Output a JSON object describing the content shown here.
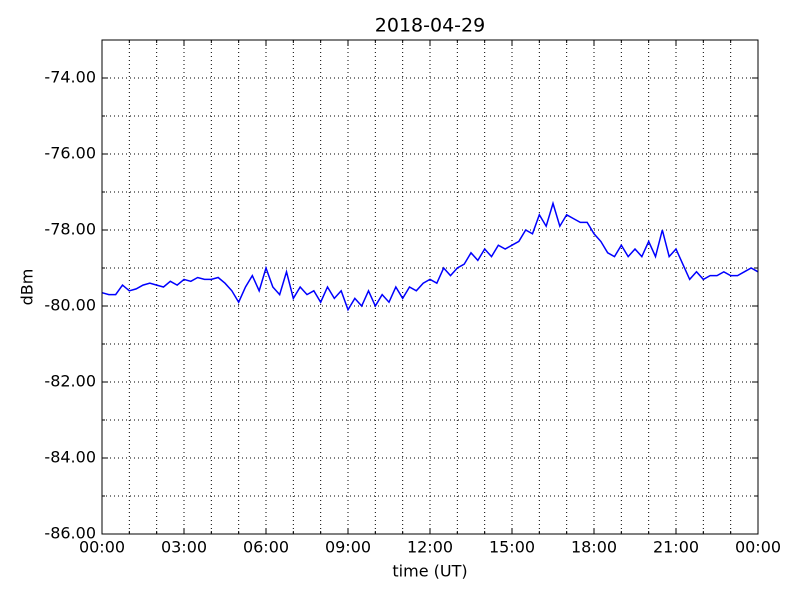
{
  "chart_data": {
    "type": "line",
    "title": "2018-04-29",
    "x_label": "time (UT)",
    "y_label": "dBm",
    "xlim": [
      0,
      24
    ],
    "ylim": [
      -86,
      -73
    ],
    "xticks": [
      {
        "value": 0,
        "label": "00:00"
      },
      {
        "value": 3,
        "label": "03:00"
      },
      {
        "value": 6,
        "label": "06:00"
      },
      {
        "value": 9,
        "label": "09:00"
      },
      {
        "value": 12,
        "label": "12:00"
      },
      {
        "value": 15,
        "label": "15:00"
      },
      {
        "value": 18,
        "label": "18:00"
      },
      {
        "value": 21,
        "label": "21:00"
      },
      {
        "value": 24,
        "label": "00:00"
      }
    ],
    "xminorticks": [
      1,
      2,
      4,
      5,
      7,
      8,
      10,
      11,
      13,
      14,
      16,
      17,
      19,
      20,
      22,
      23
    ],
    "yticks": [
      {
        "value": -86,
        "label": "-86.00"
      },
      {
        "value": -84,
        "label": "-84.00"
      },
      {
        "value": -82,
        "label": "-82.00"
      },
      {
        "value": -80,
        "label": "-80.00"
      },
      {
        "value": -78,
        "label": "-78.00"
      },
      {
        "value": -76,
        "label": "-76.00"
      },
      {
        "value": -74,
        "label": "-74.00"
      }
    ],
    "yminorticks": [
      -85,
      -83,
      -81,
      -79,
      -77,
      -75
    ],
    "grid": true,
    "series": [
      {
        "color": "#0000ff",
        "x": [
          0,
          0.25,
          0.5,
          0.75,
          1,
          1.25,
          1.5,
          1.75,
          2,
          2.25,
          2.5,
          2.75,
          3,
          3.25,
          3.5,
          3.75,
          4,
          4.25,
          4.5,
          4.75,
          5,
          5.25,
          5.5,
          5.75,
          6,
          6.25,
          6.5,
          6.75,
          7,
          7.25,
          7.5,
          7.75,
          8,
          8.25,
          8.5,
          8.75,
          9,
          9.25,
          9.5,
          9.75,
          10,
          10.25,
          10.5,
          10.75,
          11,
          11.25,
          11.5,
          11.75,
          12,
          12.25,
          12.5,
          12.75,
          13,
          13.25,
          13.5,
          13.75,
          14,
          14.25,
          14.5,
          14.75,
          15,
          15.25,
          15.5,
          15.75,
          16,
          16.25,
          16.5,
          16.75,
          17,
          17.25,
          17.5,
          17.75,
          18,
          18.25,
          18.5,
          18.75,
          19,
          19.25,
          19.5,
          19.75,
          20,
          20.25,
          20.5,
          20.75,
          21,
          21.25,
          21.5,
          21.75,
          22,
          22.25,
          22.5,
          22.75,
          23,
          23.25,
          23.5,
          23.75,
          24
        ],
        "values": [
          -79.65,
          -79.7,
          -79.7,
          -79.45,
          -79.6,
          -79.55,
          -79.45,
          -79.4,
          -79.45,
          -79.5,
          -79.35,
          -79.45,
          -79.3,
          -79.35,
          -79.25,
          -79.3,
          -79.3,
          -79.25,
          -79.4,
          -79.6,
          -79.9,
          -79.5,
          -79.2,
          -79.6,
          -79.0,
          -79.5,
          -79.7,
          -79.1,
          -79.8,
          -79.5,
          -79.7,
          -79.6,
          -79.9,
          -79.5,
          -79.8,
          -79.6,
          -80.1,
          -79.8,
          -80.0,
          -79.6,
          -80.0,
          -79.7,
          -79.9,
          -79.5,
          -79.8,
          -79.5,
          -79.6,
          -79.4,
          -79.3,
          -79.4,
          -79.0,
          -79.2,
          -79.0,
          -78.9,
          -78.6,
          -78.8,
          -78.5,
          -78.7,
          -78.4,
          -78.5,
          -78.4,
          -78.3,
          -78.0,
          -78.1,
          -77.6,
          -77.9,
          -77.3,
          -77.9,
          -77.6,
          -77.7,
          -77.8,
          -77.8,
          -78.1,
          -78.3,
          -78.6,
          -78.7,
          -78.4,
          -78.7,
          -78.5,
          -78.7,
          -78.3,
          -78.7,
          -78.0,
          -78.7,
          -78.5,
          -78.9,
          -79.3,
          -79.1,
          -79.3,
          -79.2,
          -79.2,
          -79.1,
          -79.2,
          -79.2,
          -79.1,
          -79.0,
          -79.1
        ]
      }
    ]
  }
}
